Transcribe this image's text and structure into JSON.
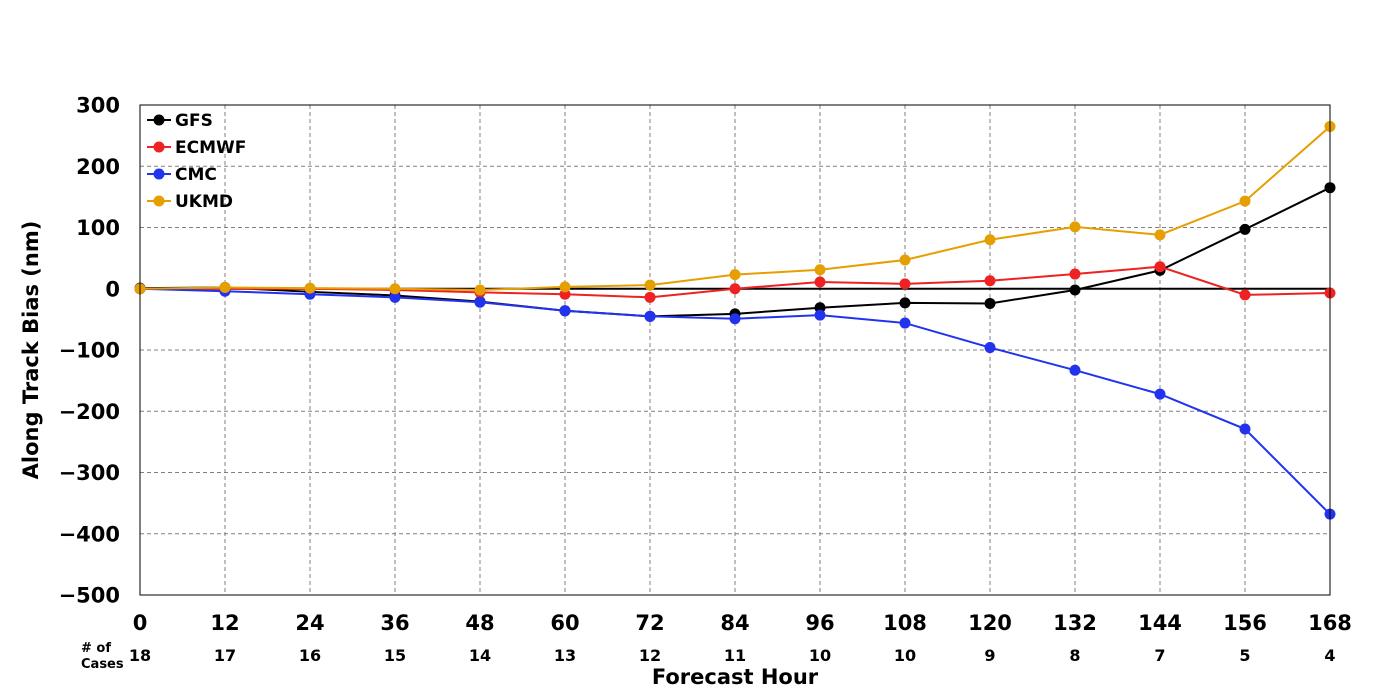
{
  "chart_data": {
    "type": "line",
    "xlabel": "Forecast Hour",
    "ylabel": "Along Track Bias (nm)",
    "xlim": [
      0,
      168
    ],
    "ylim": [
      -500,
      300
    ],
    "x_ticks": [
      "0",
      "12",
      "24",
      "36",
      "48",
      "60",
      "72",
      "84",
      "96",
      "108",
      "120",
      "132",
      "144",
      "156",
      "168"
    ],
    "y_ticks": [
      "300",
      "200",
      "100",
      "0",
      "−100",
      "−200",
      "−300",
      "−400",
      "−500"
    ],
    "grid": true,
    "legend_position": "top-left",
    "cases_label_line1": "# of",
    "cases_label_line2": "Cases",
    "cases": [
      "18",
      "17",
      "16",
      "15",
      "14",
      "13",
      "12",
      "11",
      "10",
      "10",
      "9",
      "8",
      "7",
      "5",
      "4"
    ],
    "x": [
      0,
      12,
      24,
      36,
      48,
      60,
      72,
      84,
      96,
      108,
      120,
      132,
      144,
      156,
      168
    ],
    "series": [
      {
        "name": "GFS",
        "color": "#000000",
        "values": [
          1,
          2,
          -5,
          -11,
          -21,
          -36,
          -45,
          -41,
          -31,
          -23,
          -24,
          -2,
          30,
          97,
          165
        ]
      },
      {
        "name": "ECMWF",
        "color": "#ee2222",
        "values": [
          0,
          0,
          0,
          -2,
          -6,
          -9,
          -14,
          0,
          11,
          8,
          13,
          24,
          36,
          -10,
          -7
        ]
      },
      {
        "name": "CMC",
        "color": "#2233ee",
        "values": [
          0,
          -4,
          -9,
          -14,
          -22,
          -36,
          -45,
          -49,
          -43,
          -56,
          -96,
          -133,
          -172,
          -229,
          -368
        ]
      },
      {
        "name": "UKMD",
        "color": "#e69f00",
        "values": [
          0,
          2,
          1,
          0,
          -2,
          3,
          6,
          23,
          31,
          47,
          80,
          101,
          88,
          143,
          265
        ]
      }
    ]
  }
}
